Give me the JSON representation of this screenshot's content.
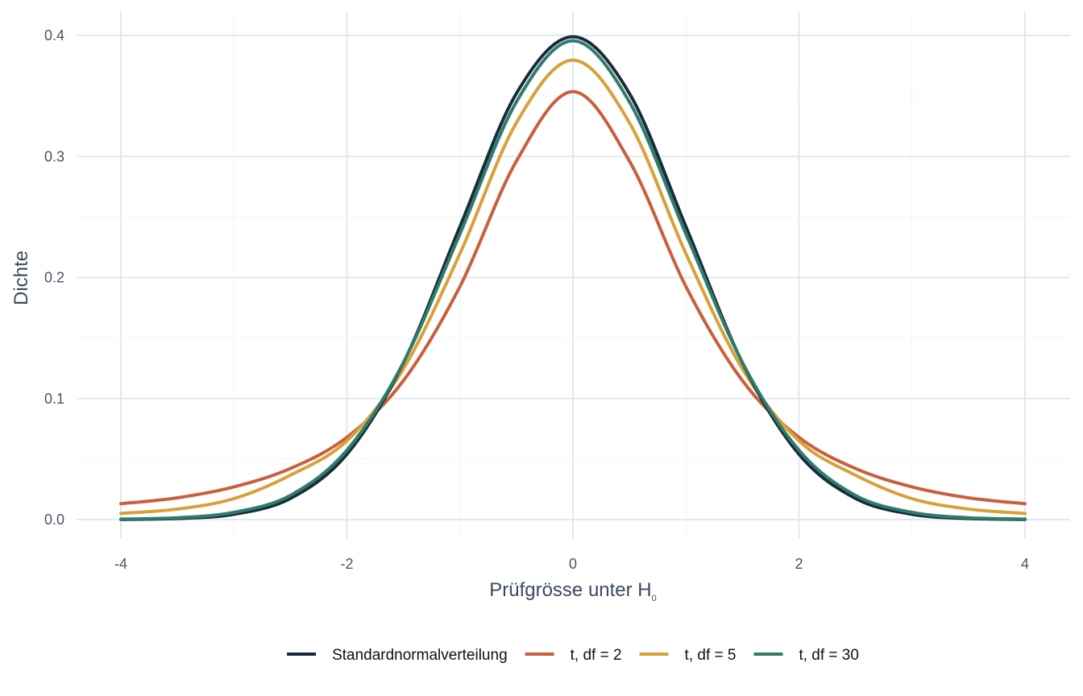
{
  "chart_data": {
    "type": "line",
    "xlabel": "Prüfgrösse unter H",
    "xlabel_subscript": "0",
    "ylabel": "Dichte",
    "xlim": [
      -4,
      4
    ],
    "ylim": [
      0,
      0.4
    ],
    "x_ticks": [
      "-4",
      "-2",
      "0",
      "2",
      "4"
    ],
    "y_ticks": [
      "0.0",
      "0.1",
      "0.2",
      "0.3",
      "0.4"
    ],
    "grid": true,
    "legend_position": "bottom",
    "x": [
      -4,
      -3.5,
      -3,
      -2.5,
      -2,
      -1.5,
      -1,
      -0.5,
      0,
      0.5,
      1,
      1.5,
      2,
      2.5,
      3,
      3.5,
      4
    ],
    "series": [
      {
        "name": "Standardnormalverteilung",
        "color": "#1b2a3c",
        "values": [
          0.0001,
          0.0009,
          0.0044,
          0.0175,
          0.054,
          0.1295,
          0.242,
          0.3521,
          0.3989,
          0.3521,
          0.242,
          0.1295,
          0.054,
          0.0175,
          0.0044,
          0.0009,
          0.0001
        ]
      },
      {
        "name": "t, df = 2",
        "color": "#c95f3c",
        "values": [
          0.0131,
          0.018,
          0.027,
          0.0422,
          0.068,
          0.1148,
          0.1925,
          0.2962,
          0.3536,
          0.2962,
          0.1925,
          0.1148,
          0.068,
          0.0422,
          0.027,
          0.018,
          0.0131
        ]
      },
      {
        "name": "t, df = 5",
        "color": "#d9a03a",
        "values": [
          0.0051,
          0.0087,
          0.0173,
          0.0367,
          0.0651,
          0.1245,
          0.2197,
          0.3279,
          0.3796,
          0.3279,
          0.2197,
          0.1245,
          0.0651,
          0.0367,
          0.0173,
          0.0087,
          0.0051
        ]
      },
      {
        "name": "t, df = 30",
        "color": "#2e7d6b",
        "values": [
          0.0004,
          0.0015,
          0.006,
          0.02,
          0.0573,
          0.1297,
          0.236,
          0.3451,
          0.3956,
          0.3451,
          0.236,
          0.1297,
          0.0573,
          0.02,
          0.006,
          0.0015,
          0.0004
        ]
      }
    ]
  }
}
